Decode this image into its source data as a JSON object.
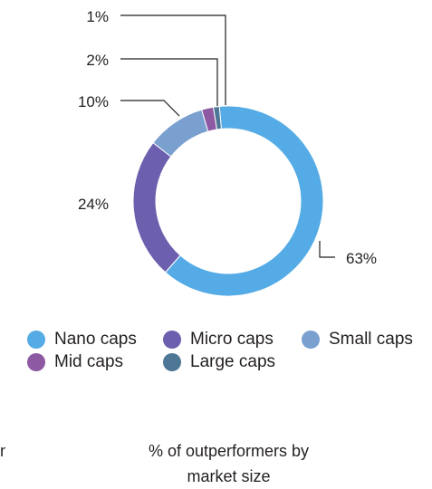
{
  "chart_data": {
    "type": "pie",
    "donut": true,
    "categories": [
      "Nano caps",
      "Micro caps",
      "Small caps",
      "Mid caps",
      "Large caps"
    ],
    "values": [
      63,
      24,
      10,
      2,
      1
    ],
    "value_labels": [
      "63%",
      "24%",
      "10%",
      "2%",
      "1%"
    ],
    "colors": [
      "#55abe5",
      "#6b5fae",
      "#7aa0d0",
      "#8e59a3",
      "#4e7795"
    ],
    "legend_position": "bottom",
    "caption_lines": [
      "% of outperformers by",
      "market size"
    ]
  },
  "edge_fragment": "n"
}
